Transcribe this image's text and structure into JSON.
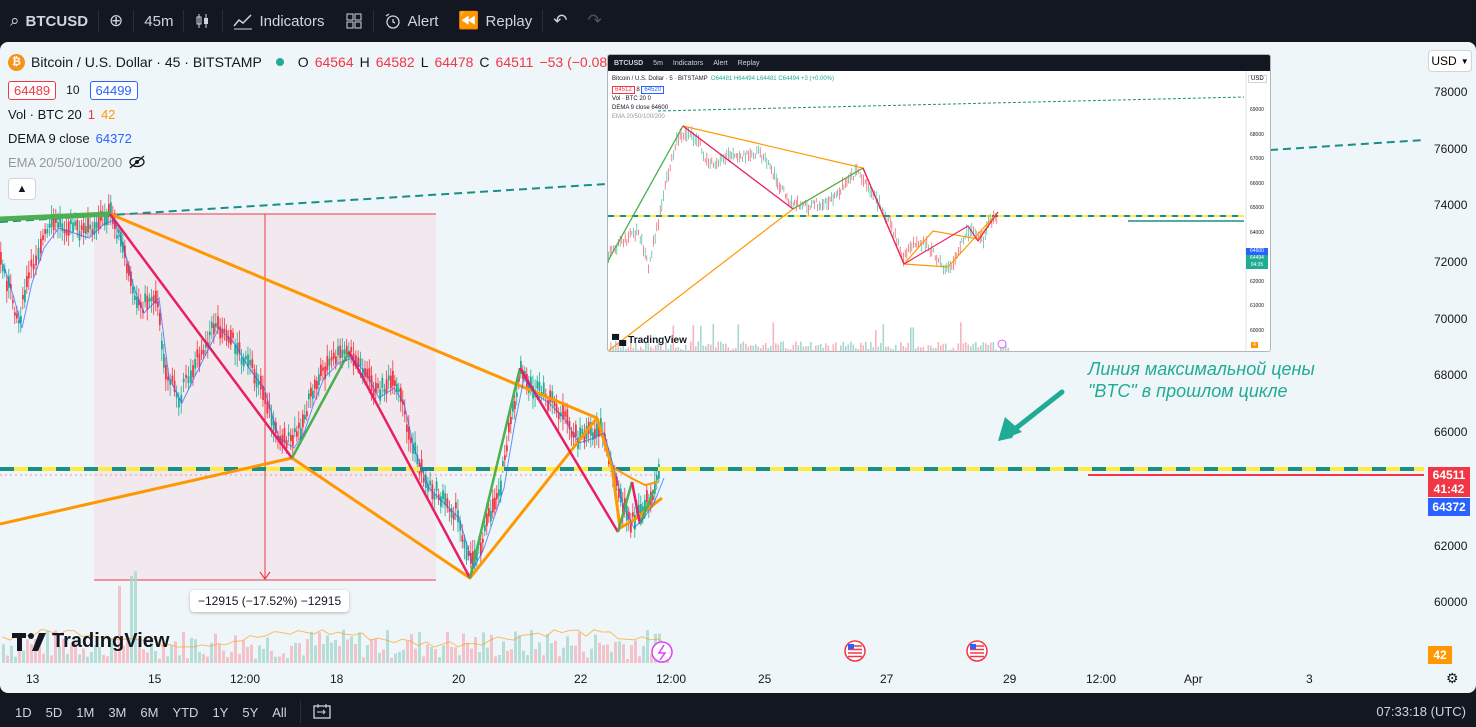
{
  "toolbar": {
    "symbol": "BTCUSD",
    "interval": "45m",
    "indicators": "Indicators",
    "alert": "Alert",
    "replay": "Replay"
  },
  "legend": {
    "title": "Bitcoin / U.S. Dollar · 45 · BITSTAMP",
    "o_label": "O",
    "o_val": "64564",
    "h_label": "H",
    "h_val": "64582",
    "l_label": "L",
    "l_val": "64478",
    "c_label": "C",
    "c_val": "64511",
    "change": "−53 (−0.08%)",
    "bid": "64489",
    "spread": "10",
    "ask": "64499",
    "vol_label": "Vol · BTC 20",
    "vol_a": "1",
    "vol_b": "42",
    "dema_label": "DEMA 9 close",
    "dema_val": "64372",
    "ema_label": "EMA 20/50/100/200"
  },
  "axis": {
    "currency": "USD",
    "prices": [
      "78000",
      "76000",
      "74000",
      "72000",
      "70000",
      "68000",
      "66000",
      "62000",
      "60000"
    ],
    "last_price": "64511",
    "countdown": "41:42",
    "dema_tag": "64372",
    "vol_tag": "42"
  },
  "x_axis": [
    "13",
    "15",
    "12:00",
    "18",
    "20",
    "22",
    "12:00",
    "25",
    "27",
    "29",
    "12:00",
    "Apr",
    "3"
  ],
  "measure": "−12915 (−17.52%) −12915",
  "annotation": [
    "Линия максимальной цены",
    "\"BTC\" в прошлом цикле"
  ],
  "watermark": "TradingView",
  "inset": {
    "symbol": "BTCUSD",
    "interval": "5m",
    "indicators": "Indicators",
    "alert": "Alert",
    "replay": "Replay",
    "title": "Bitcoin / U.S. Dollar · 5 · BITSTAMP",
    "ohlc": "O64481 H64494 L64481 C64494 +3 (+0.00%)",
    "bid": "64512",
    "spread": "8",
    "ask": "64520",
    "vol": "Vol · BTC 20  0",
    "dema": "DEMA 9 close  64600",
    "ema": "EMA 20/50/100/200",
    "prices": [
      "69000",
      "68000",
      "67000",
      "66000",
      "65000",
      "64000",
      "63000",
      "62000",
      "61000",
      "60000"
    ],
    "currency": "USD",
    "watermark": "TradingView",
    "tags": [
      "64600",
      "64494",
      "04:35"
    ],
    "vol_tag": "4"
  },
  "bottom": {
    "ranges": [
      "1D",
      "5D",
      "1M",
      "3M",
      "6M",
      "YTD",
      "1Y",
      "5Y",
      "All"
    ],
    "time": "07:33:18 (UTC)"
  },
  "colors": {
    "up": "#22ab94",
    "down": "#f23645",
    "zigzag_up": "#4caf50",
    "zigzag_down": "#e91e63",
    "harmonic": "#ff9800",
    "accent": "#2962ff"
  }
}
